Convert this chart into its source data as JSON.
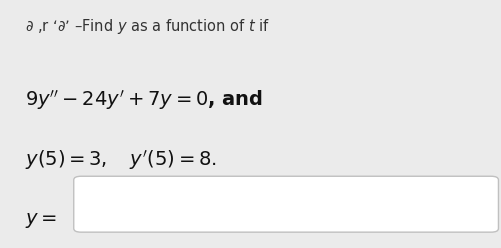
{
  "bg_color": "#ebebeb",
  "input_box_color": "#ffffff",
  "input_box_border": "#c0c0c0",
  "text_color": "#333333",
  "math_color": "#111111",
  "figsize": [
    5.01,
    2.48
  ],
  "dpi": 100,
  "header": "∂ ,r ‘∂’ –Find $y$ as a function of $t$ if",
  "eq1": "$9y'' - 24y' + 7y = 0$, and",
  "eq2": "$y(5) = 3, \\quad y'(5) = 8.$",
  "y_label": "$y =$"
}
